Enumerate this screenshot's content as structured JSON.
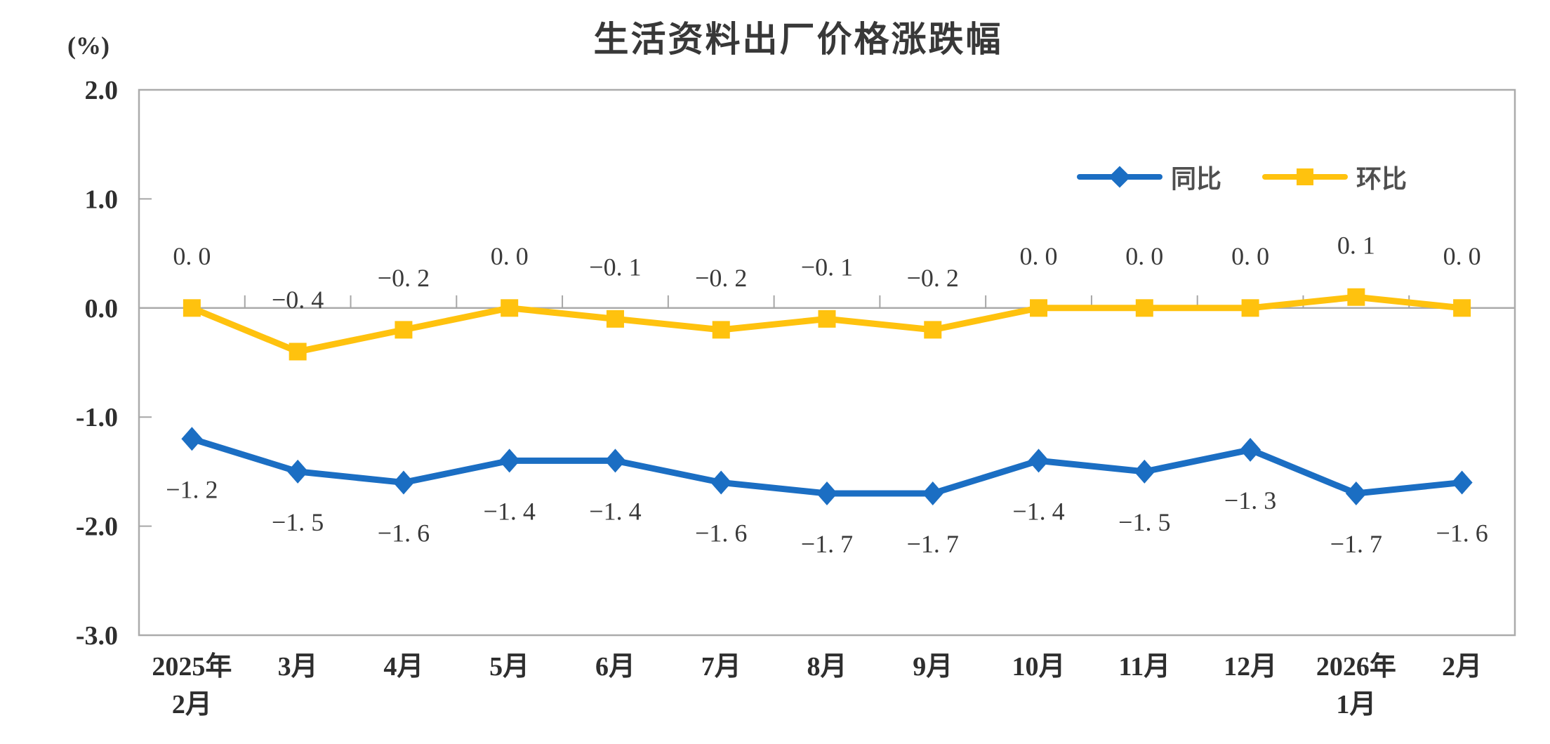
{
  "chart_data": {
    "type": "line",
    "title": "生活资料出厂价格涨跌幅",
    "unit_label": "(%)",
    "categories": [
      "2025年2月",
      "3月",
      "4月",
      "5月",
      "6月",
      "7月",
      "8月",
      "9月",
      "10月",
      "11月",
      "12月",
      "2026年1月",
      "2月"
    ],
    "x_tick_labels": [
      [
        "2025年",
        "2月"
      ],
      [
        "3月"
      ],
      [
        "4月"
      ],
      [
        "5月"
      ],
      [
        "6月"
      ],
      [
        "7月"
      ],
      [
        "8月"
      ],
      [
        "9月"
      ],
      [
        "10月"
      ],
      [
        "11月"
      ],
      [
        "12月"
      ],
      [
        "2026年",
        "1月"
      ],
      [
        "2月"
      ]
    ],
    "series": [
      {
        "name": "同比",
        "marker": "diamond",
        "color": "#1B6EC3",
        "values": [
          -1.2,
          -1.5,
          -1.6,
          -1.4,
          -1.4,
          -1.6,
          -1.7,
          -1.7,
          -1.4,
          -1.5,
          -1.3,
          -1.7,
          -1.6
        ]
      },
      {
        "name": "环比",
        "marker": "square",
        "color": "#FFC20E",
        "values": [
          0.0,
          -0.4,
          -0.2,
          0.0,
          -0.1,
          -0.2,
          -0.1,
          -0.2,
          0.0,
          0.0,
          0.0,
          0.1,
          0.0
        ]
      }
    ],
    "ylim": [
      -3.0,
      2.0
    ],
    "y_ticks": [
      "2.0",
      "1.0",
      "0.0",
      "-1.0",
      "-2.0",
      "-3.0"
    ],
    "grid": false,
    "zero_axis_line": true,
    "legend_position": "inside-top-right"
  },
  "style": {
    "background": "#FFFFFF",
    "axis_color": "#ABABAB",
    "tick_color": "#A6A6A6",
    "axis_text_color": "#2E2E2E",
    "data_label_color": "#3A3A3A",
    "legend_text_color": "#4F4F4F"
  }
}
